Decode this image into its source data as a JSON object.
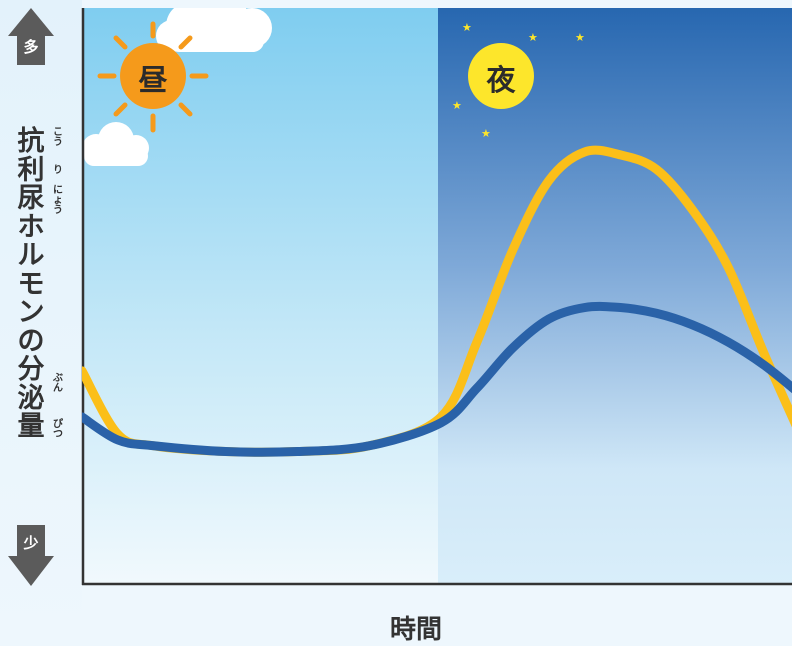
{
  "chart_data": {
    "type": "line",
    "title": "",
    "ylabel": "抗利尿ホルモンの分泌量",
    "ylabel_ruby": [
      "こう",
      "り",
      "にょう",
      "ぶん",
      "ぴつ"
    ],
    "xlabel": "時間",
    "y_high_label": "多",
    "y_low_label": "少",
    "regions": [
      {
        "label": "昼",
        "x_range": [
          0,
          0.5
        ],
        "color": "#7fcdf0"
      },
      {
        "label": "夜",
        "x_range": [
          0.5,
          1
        ],
        "color": "#2767b0"
      }
    ],
    "x": [
      0,
      0.05,
      0.1,
      0.2,
      0.3,
      0.4,
      0.5,
      0.55,
      0.6,
      0.65,
      0.7,
      0.75,
      0.8,
      0.85,
      0.9,
      0.95,
      1.0
    ],
    "xlim": [
      0,
      1
    ],
    "ylim": [
      0,
      1
    ],
    "series": [
      {
        "color": "#fbbf19",
        "values": [
          0.37,
          0.26,
          0.24,
          0.23,
          0.23,
          0.24,
          0.29,
          0.42,
          0.58,
          0.7,
          0.75,
          0.745,
          0.72,
          0.65,
          0.55,
          0.4,
          0.26
        ]
      },
      {
        "color": "#2a62a8",
        "values": [
          0.29,
          0.25,
          0.24,
          0.23,
          0.23,
          0.24,
          0.28,
          0.34,
          0.41,
          0.46,
          0.48,
          0.48,
          0.47,
          0.45,
          0.42,
          0.38,
          0.33
        ]
      }
    ],
    "grid": false,
    "legend": "none"
  },
  "decorations": {
    "sun_icon": "sun-icon",
    "moon_icon": "night-badge-icon",
    "cloud_icon": "cloud-icon",
    "star_icon": "star-icon"
  }
}
